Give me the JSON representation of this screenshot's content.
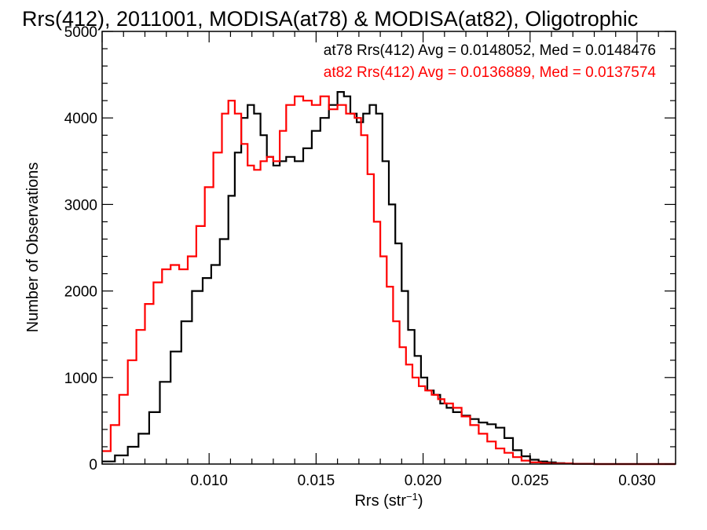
{
  "chart_data": {
    "type": "line",
    "title": "Rrs(412), 2011001, MODISA(at78) & MODISA(at82), Oligotrophic",
    "xlabel": "Rrs (str",
    "xlabel_sup": "−1",
    "xlabel_close": ")",
    "ylabel": "Number of Observations",
    "xlim": [
      0.005,
      0.0318
    ],
    "ylim": [
      0,
      5000
    ],
    "x_ticks": [
      {
        "value": 0.01,
        "label": "0.010"
      },
      {
        "value": 0.015,
        "label": "0.015"
      },
      {
        "value": 0.02,
        "label": "0.020"
      },
      {
        "value": 0.025,
        "label": "0.025"
      },
      {
        "value": 0.03,
        "label": "0.030"
      }
    ],
    "y_ticks": [
      {
        "value": 0,
        "label": "0"
      },
      {
        "value": 1000,
        "label": "1000"
      },
      {
        "value": 2000,
        "label": "2000"
      },
      {
        "value": 3000,
        "label": "3000"
      },
      {
        "value": 4000,
        "label": "4000"
      },
      {
        "value": 5000,
        "label": "5000"
      }
    ],
    "grid": false,
    "legend_position": "top-right",
    "series": [
      {
        "name": "at78 Rrs(412) Avg = 0.0148052, Med = 0.0148476",
        "color": "#000000",
        "x": [
          0.005,
          0.0056,
          0.0062,
          0.0067,
          0.0072,
          0.0077,
          0.0082,
          0.0087,
          0.0092,
          0.0097,
          0.0101,
          0.0105,
          0.0109,
          0.0112,
          0.0115,
          0.0118,
          0.0121,
          0.0124,
          0.0127,
          0.013,
          0.0133,
          0.0136,
          0.014,
          0.0144,
          0.0148,
          0.0152,
          0.0156,
          0.016,
          0.0163,
          0.0166,
          0.0169,
          0.0172,
          0.0175,
          0.0178,
          0.0181,
          0.0184,
          0.0187,
          0.019,
          0.0193,
          0.0196,
          0.0199,
          0.0202,
          0.0205,
          0.0208,
          0.0211,
          0.0214,
          0.0218,
          0.0222,
          0.0226,
          0.023,
          0.0234,
          0.0238,
          0.0242,
          0.0246,
          0.025,
          0.0254,
          0.0258,
          0.0262,
          0.0266,
          0.027,
          0.028,
          0.029,
          0.03,
          0.0318
        ],
        "y": [
          30,
          100,
          200,
          350,
          600,
          950,
          1300,
          1650,
          2000,
          2150,
          2300,
          2600,
          3100,
          3600,
          4000,
          4150,
          4050,
          3800,
          3550,
          3450,
          3500,
          3550,
          3500,
          3650,
          3850,
          4000,
          4150,
          4300,
          4250,
          4050,
          3950,
          4050,
          4150,
          4050,
          3500,
          3000,
          2550,
          2000,
          1550,
          1250,
          1000,
          850,
          800,
          700,
          650,
          600,
          560,
          520,
          480,
          460,
          420,
          300,
          160,
          90,
          50,
          30,
          20,
          10,
          5,
          3,
          0,
          0,
          0,
          0
        ]
      },
      {
        "name": "at82 Rrs(412) Avg = 0.0136889, Med = 0.0137574",
        "color": "#ff0000",
        "x": [
          0.005,
          0.0054,
          0.0058,
          0.0062,
          0.0066,
          0.007,
          0.0074,
          0.0078,
          0.0082,
          0.0086,
          0.009,
          0.0094,
          0.0098,
          0.0102,
          0.0106,
          0.0109,
          0.0112,
          0.0115,
          0.0118,
          0.0121,
          0.0124,
          0.0127,
          0.013,
          0.0133,
          0.0136,
          0.014,
          0.0144,
          0.0148,
          0.0152,
          0.0156,
          0.016,
          0.0164,
          0.0168,
          0.0171,
          0.0174,
          0.0177,
          0.018,
          0.0183,
          0.0186,
          0.0189,
          0.0192,
          0.0195,
          0.0198,
          0.0201,
          0.0204,
          0.0207,
          0.021,
          0.0214,
          0.0218,
          0.0222,
          0.0226,
          0.023,
          0.0234,
          0.0238,
          0.0242,
          0.0246,
          0.025,
          0.0255,
          0.026,
          0.027,
          0.028,
          0.03,
          0.0318
        ],
        "y": [
          150,
          450,
          800,
          1200,
          1550,
          1850,
          2100,
          2250,
          2300,
          2250,
          2400,
          2750,
          3200,
          3600,
          4050,
          4200,
          4050,
          3700,
          3450,
          3400,
          3500,
          3550,
          3500,
          3850,
          4150,
          4250,
          4200,
          4150,
          4250,
          4100,
          4150,
          4050,
          4000,
          3800,
          3350,
          2800,
          2400,
          2050,
          1650,
          1350,
          1150,
          1000,
          900,
          850,
          800,
          750,
          700,
          650,
          550,
          450,
          350,
          260,
          180,
          130,
          80,
          40,
          20,
          10,
          5,
          2,
          0,
          0,
          0
        ]
      }
    ]
  }
}
